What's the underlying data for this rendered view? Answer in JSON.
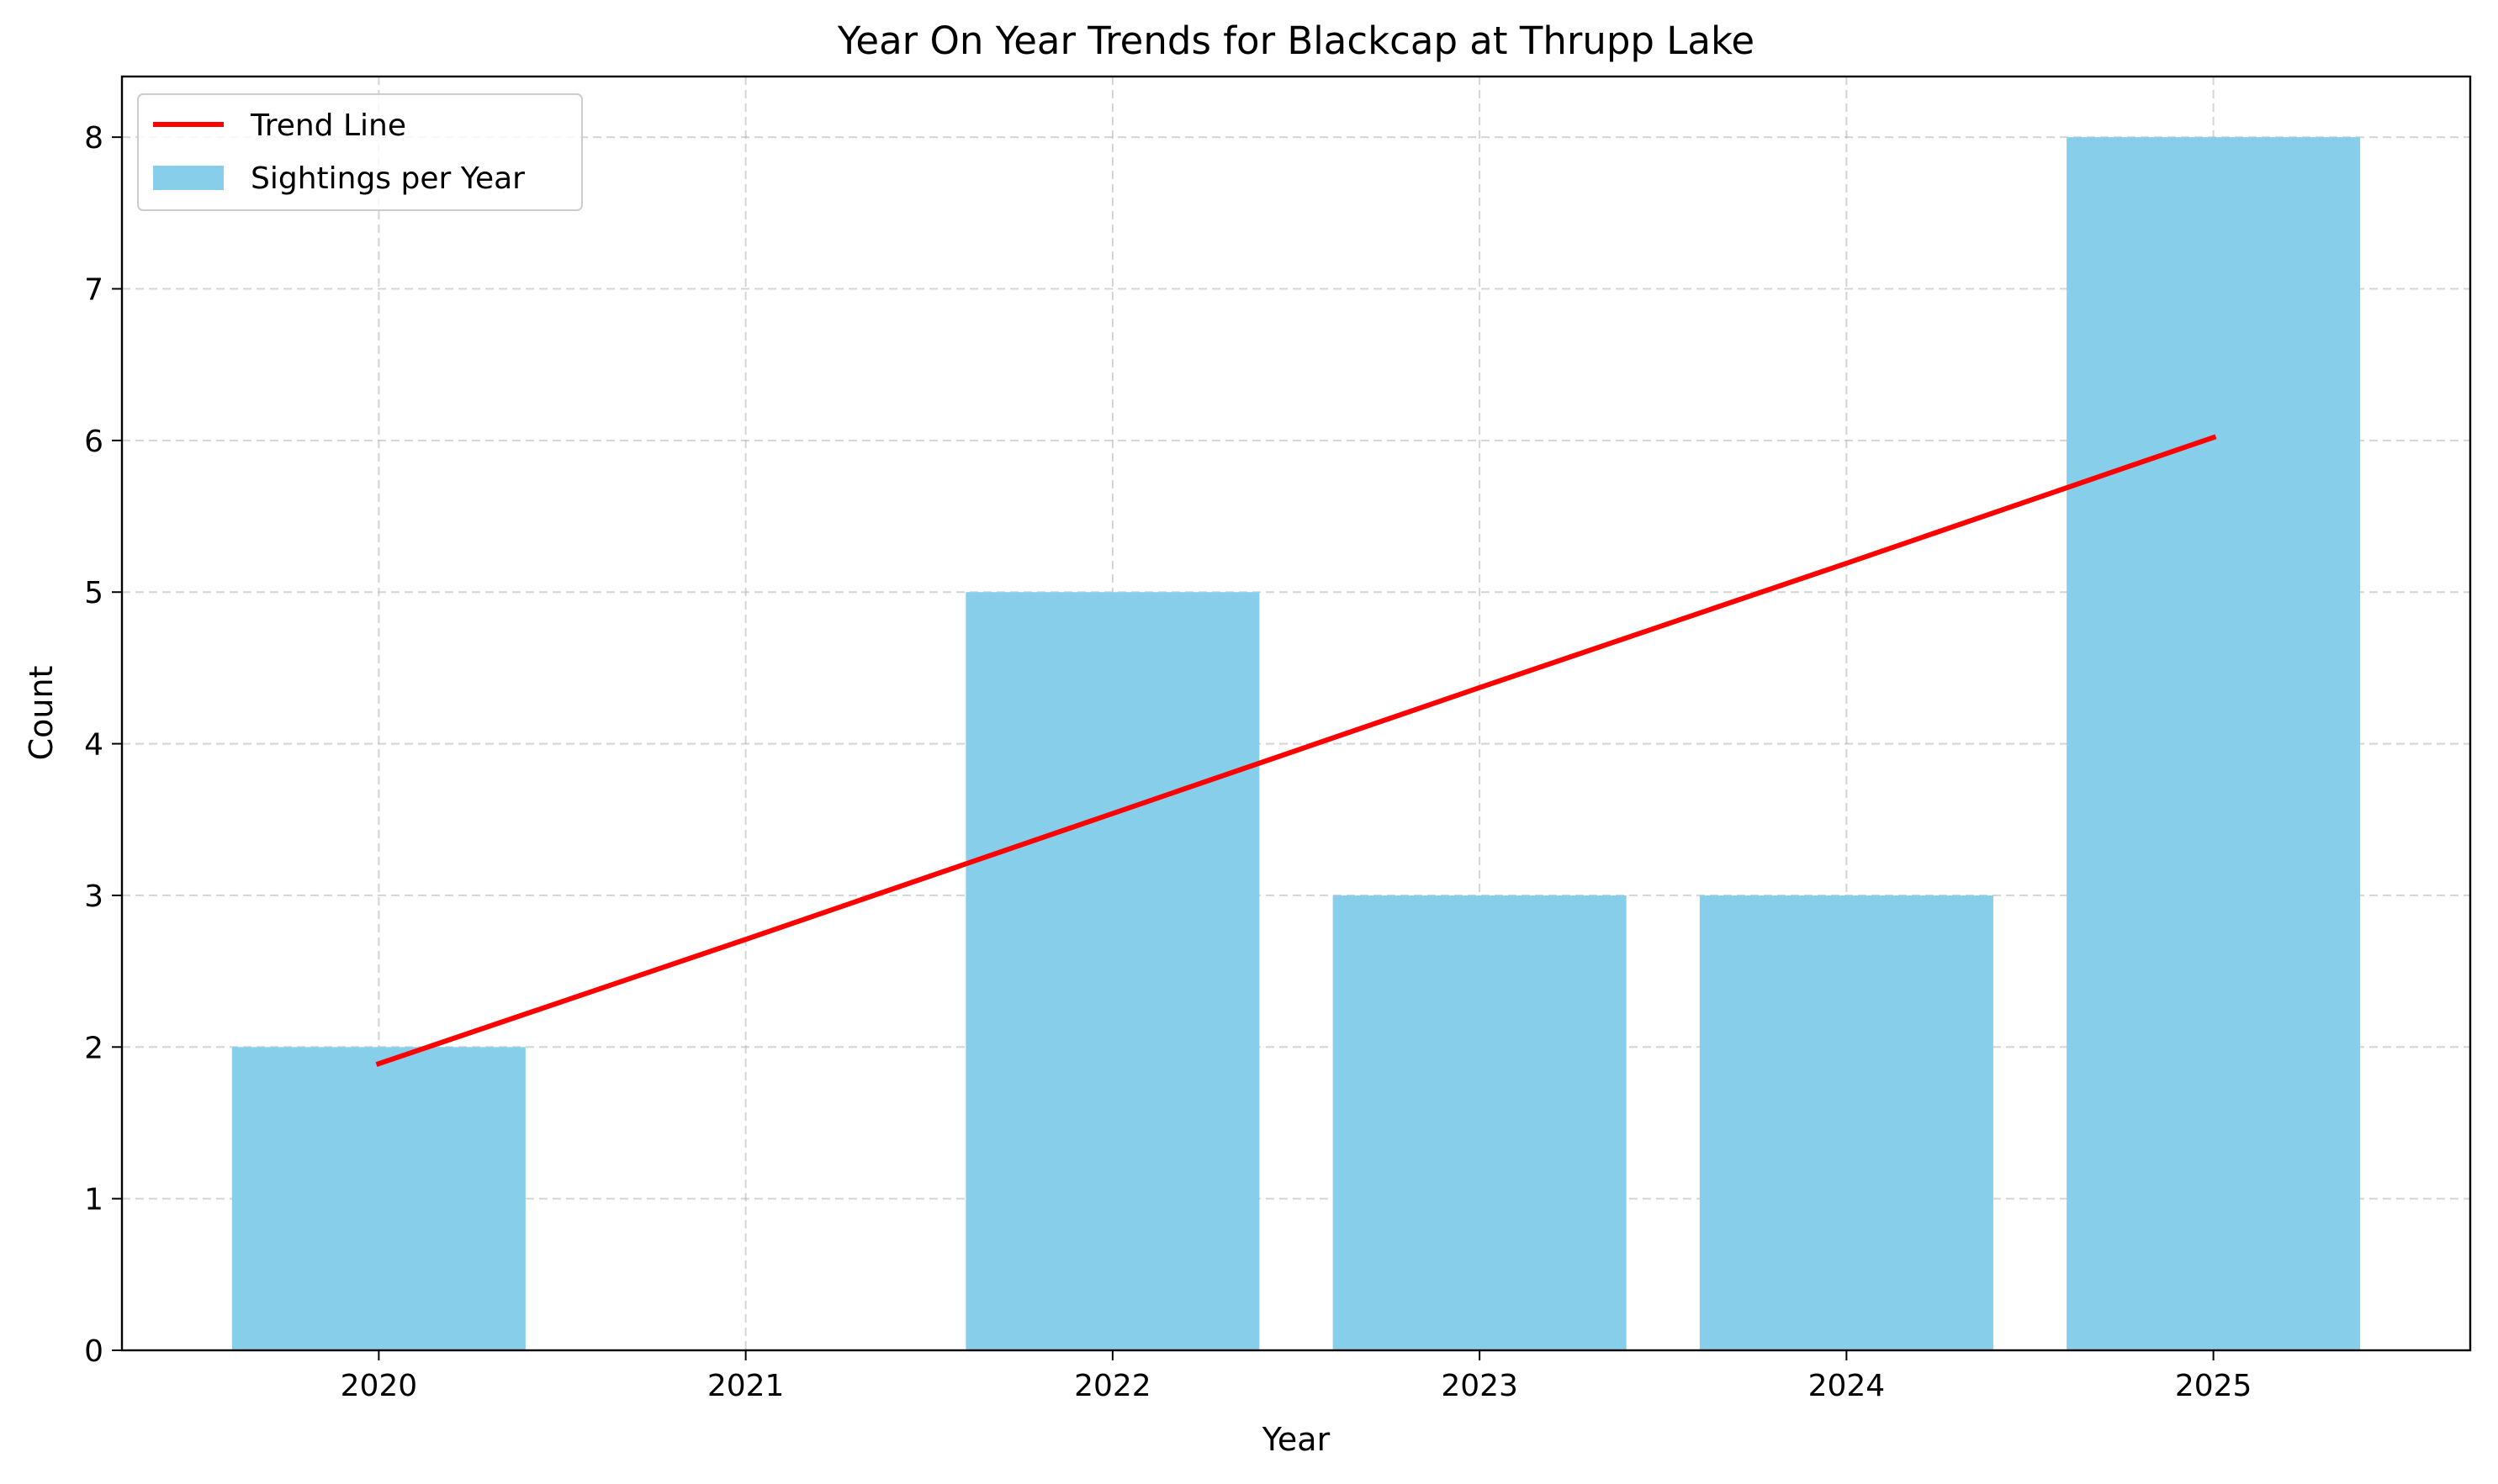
{
  "chart_data": {
    "type": "bar",
    "title": "Year On Year Trends for Blackcap at Thrupp Lake",
    "xlabel": "Year",
    "ylabel": "Count",
    "categories": [
      "2020",
      "2021",
      "2022",
      "2023",
      "2024",
      "2025"
    ],
    "series": [
      {
        "name": "Sightings per Year",
        "type": "bar",
        "values": [
          2,
          0,
          5,
          3,
          3,
          8
        ],
        "color": "#87ceeb"
      },
      {
        "name": "Trend Line",
        "type": "line",
        "values": [
          1.89,
          2.71,
          3.54,
          4.37,
          5.19,
          6.02
        ],
        "color": "#ff0000"
      }
    ],
    "ylim": [
      0,
      8.4
    ],
    "yticks": [
      "0",
      "1",
      "2",
      "3",
      "4",
      "5",
      "6",
      "7",
      "8"
    ],
    "grid": true,
    "legend_position": "top-left"
  }
}
